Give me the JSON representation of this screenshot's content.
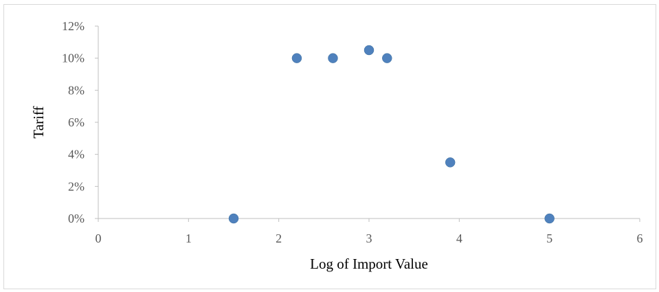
{
  "chart_data": {
    "type": "scatter",
    "title": "",
    "xlabel": "Log of Import Value",
    "ylabel": "Tariff",
    "xlim": [
      0,
      6
    ],
    "ylim": [
      0,
      0.12
    ],
    "x_ticks": [
      "0",
      "1",
      "2",
      "3",
      "4",
      "5",
      "6"
    ],
    "y_ticks": [
      "0%",
      "2%",
      "4%",
      "6%",
      "8%",
      "10%",
      "12%"
    ],
    "grid": false,
    "legend": "none",
    "marker_color": "#4f81bd",
    "points": [
      {
        "x": 1.5,
        "y": 0.0
      },
      {
        "x": 2.2,
        "y": 0.1
      },
      {
        "x": 2.6,
        "y": 0.1
      },
      {
        "x": 3.0,
        "y": 0.105
      },
      {
        "x": 3.2,
        "y": 0.1
      },
      {
        "x": 3.9,
        "y": 0.035
      },
      {
        "x": 5.0,
        "y": 0.0
      }
    ]
  }
}
